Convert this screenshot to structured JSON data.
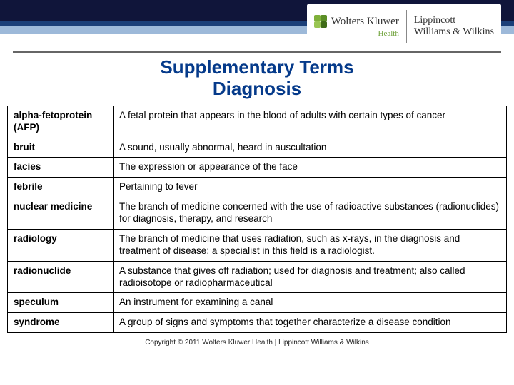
{
  "brand": {
    "wk": "Wolters Kluwer",
    "wk_sub": "Health",
    "lww_line1": "Lippincott",
    "lww_line2": "Williams & Wilkins"
  },
  "title_line1": "Supplementary Terms",
  "title_line2": "Diagnosis",
  "terms": [
    {
      "term": "alpha-fetoprotein (AFP)",
      "def": "A fetal protein that appears in the blood of adults with certain types of cancer"
    },
    {
      "term": "bruit",
      "def": "A sound, usually abnormal, heard in auscultation"
    },
    {
      "term": "facies",
      "def": "The expression or appearance of the face"
    },
    {
      "term": "febrile",
      "def": "Pertaining to fever"
    },
    {
      "term": "nuclear medicine",
      "def": "The branch of medicine concerned with the use of radioactive substances (radionuclides) for diagnosis, therapy, and research"
    },
    {
      "term": "radiology",
      "def": "The branch of medicine that uses radiation, such as x-rays, in the diagnosis and treatment of disease; a specialist in this field is a radiologist."
    },
    {
      "term": "radionuclide",
      "def": "A substance that gives off radiation; used for diagnosis and treatment; also called radioisotope or radiopharmaceutical"
    },
    {
      "term": "speculum",
      "def": "An instrument for examining a canal"
    },
    {
      "term": "syndrome",
      "def": "A group of signs and symptoms that together characterize a disease condition"
    }
  ],
  "footer": "Copyright © 2011 Wolters Kluwer Health | Lippincott Williams & Wilkins"
}
